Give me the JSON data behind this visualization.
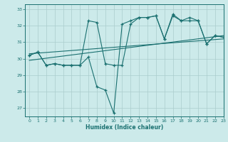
{
  "xlabel": "Humidex (Indice chaleur)",
  "ylabel": "",
  "xlim": [
    -0.5,
    23
  ],
  "ylim": [
    26.5,
    33.3
  ],
  "yticks": [
    27,
    28,
    29,
    30,
    31,
    32,
    33
  ],
  "xticks": [
    0,
    1,
    2,
    3,
    4,
    5,
    6,
    7,
    8,
    9,
    10,
    11,
    12,
    13,
    14,
    15,
    16,
    17,
    18,
    19,
    20,
    21,
    22,
    23
  ],
  "bg_color": "#cceaea",
  "grid_color": "#aacccc",
  "line_color": "#1a7070",
  "line1_x": [
    0,
    1,
    2,
    3,
    4,
    5,
    6,
    7,
    8,
    9,
    10,
    11,
    12,
    13,
    14,
    15,
    16,
    17,
    18,
    19,
    20,
    21,
    22,
    23
  ],
  "line1_y": [
    30.2,
    30.4,
    29.6,
    29.7,
    29.6,
    29.6,
    29.6,
    32.3,
    32.2,
    29.7,
    29.6,
    29.6,
    32.1,
    32.5,
    32.5,
    32.6,
    31.2,
    32.6,
    32.3,
    32.3,
    32.3,
    30.9,
    31.4,
    31.3
  ],
  "line2_x": [
    0,
    1,
    2,
    3,
    4,
    5,
    6,
    7,
    8,
    9,
    10,
    11,
    12,
    13,
    14,
    15,
    16,
    17,
    18,
    19,
    20,
    21,
    22,
    23
  ],
  "line2_y": [
    30.2,
    30.4,
    29.6,
    29.7,
    29.6,
    29.6,
    29.6,
    30.1,
    28.3,
    28.1,
    26.7,
    32.1,
    32.3,
    32.5,
    32.5,
    32.6,
    31.2,
    32.7,
    32.3,
    32.5,
    32.3,
    30.9,
    31.4,
    31.3
  ],
  "trend1_x": [
    0,
    23
  ],
  "trend1_y": [
    29.9,
    31.4
  ],
  "trend2_x": [
    0,
    23
  ],
  "trend2_y": [
    30.3,
    31.2
  ]
}
